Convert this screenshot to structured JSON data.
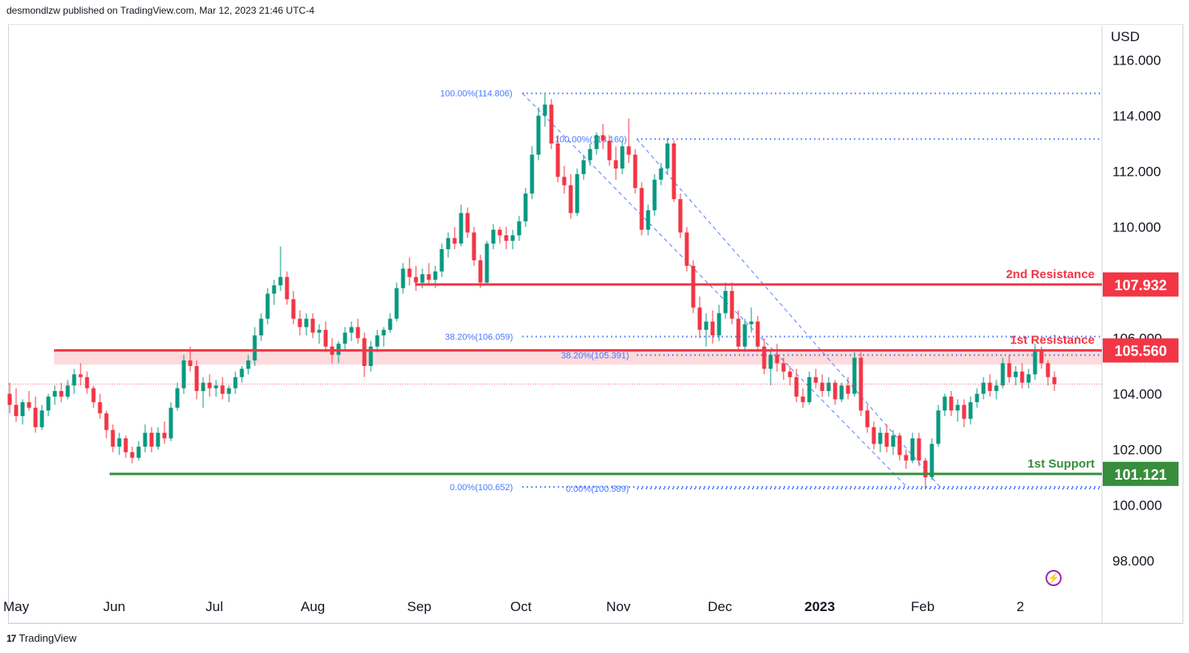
{
  "header": {
    "publisher": "desmondlzw published on TradingView.com, Mar 12, 2023 21:46 UTC-4"
  },
  "footer": {
    "brand": "TradingView",
    "logo_icon": "tradingview-logo-icon"
  },
  "currency": "USD",
  "chart_data": {
    "type": "candlestick",
    "instrument_currency": "USD",
    "ylim": [
      97.0,
      117.0
    ],
    "y_ticks": [
      "116.000",
      "114.000",
      "112.000",
      "110.000",
      "106.000",
      "104.000",
      "102.000",
      "100.000",
      "98.000"
    ],
    "x_ticks": [
      "May",
      "Jun",
      "Jul",
      "Aug",
      "Sep",
      "Oct",
      "Nov",
      "Dec",
      "2023",
      "Feb",
      "2"
    ],
    "horizontal_levels": [
      {
        "label": "2nd Resistance",
        "value": "107.932",
        "color": "#f23645"
      },
      {
        "label": "1st Resistance",
        "value": "105.560",
        "color": "#f23645"
      },
      {
        "label": "1st Support",
        "value": "101.121",
        "color": "#388e3c"
      }
    ],
    "fibonacci_labels": [
      {
        "text": "100.00%(114.806)",
        "value": 114.806
      },
      {
        "text": "100.00%(113.160)",
        "value": 113.16
      },
      {
        "text": "38.20%(106.059)",
        "value": 106.059
      },
      {
        "text": "38.20%(105.391)",
        "value": 105.391
      },
      {
        "text": "0.00%(100.652)",
        "value": 100.652
      },
      {
        "text": "0.00%(100.589)",
        "value": 100.589
      }
    ],
    "last_price": 104.35,
    "candles": [
      [
        104.0,
        104.4,
        103.3,
        103.6
      ],
      [
        103.6,
        104.2,
        103.0,
        103.2
      ],
      [
        103.2,
        103.8,
        102.9,
        103.7
      ],
      [
        103.7,
        104.1,
        103.4,
        103.5
      ],
      [
        103.5,
        103.9,
        102.6,
        102.8
      ],
      [
        102.8,
        103.6,
        102.7,
        103.4
      ],
      [
        103.4,
        104.0,
        103.2,
        103.9
      ],
      [
        103.9,
        104.3,
        103.6,
        104.1
      ],
      [
        104.1,
        104.4,
        103.7,
        103.9
      ],
      [
        103.9,
        104.5,
        103.8,
        104.3
      ],
      [
        104.3,
        104.9,
        104.0,
        104.7
      ],
      [
        104.7,
        105.1,
        104.3,
        104.6
      ],
      [
        104.6,
        104.8,
        104.0,
        104.2
      ],
      [
        104.2,
        104.3,
        103.5,
        103.7
      ],
      [
        103.7,
        104.0,
        103.1,
        103.3
      ],
      [
        103.3,
        103.4,
        102.4,
        102.7
      ],
      [
        102.7,
        102.9,
        101.9,
        102.1
      ],
      [
        102.1,
        102.6,
        101.8,
        102.4
      ],
      [
        102.4,
        102.5,
        101.7,
        101.9
      ],
      [
        101.9,
        102.1,
        101.5,
        101.7
      ],
      [
        101.7,
        102.3,
        101.6,
        102.1
      ],
      [
        102.1,
        102.9,
        101.9,
        102.6
      ],
      [
        102.6,
        102.8,
        101.9,
        102.1
      ],
      [
        102.1,
        102.8,
        102.0,
        102.6
      ],
      [
        102.6,
        103.0,
        102.2,
        102.4
      ],
      [
        102.4,
        103.7,
        102.3,
        103.5
      ],
      [
        103.5,
        104.4,
        103.4,
        104.2
      ],
      [
        104.2,
        105.4,
        104.0,
        105.2
      ],
      [
        105.2,
        105.7,
        104.8,
        105.0
      ],
      [
        105.0,
        105.2,
        103.8,
        104.1
      ],
      [
        104.1,
        104.6,
        103.5,
        104.4
      ],
      [
        104.4,
        104.7,
        103.9,
        104.2
      ],
      [
        104.2,
        104.5,
        103.9,
        104.3
      ],
      [
        104.3,
        104.6,
        103.8,
        104.0
      ],
      [
        104.0,
        104.3,
        103.7,
        104.2
      ],
      [
        104.2,
        104.8,
        104.0,
        104.6
      ],
      [
        104.6,
        105.0,
        104.4,
        104.9
      ],
      [
        104.9,
        105.4,
        104.7,
        105.2
      ],
      [
        105.2,
        106.4,
        105.0,
        106.1
      ],
      [
        106.1,
        106.9,
        105.9,
        106.7
      ],
      [
        106.7,
        107.8,
        106.5,
        107.6
      ],
      [
        107.6,
        108.1,
        107.2,
        107.9
      ],
      [
        107.9,
        109.3,
        107.7,
        108.2
      ],
      [
        108.2,
        108.4,
        107.2,
        107.4
      ],
      [
        107.4,
        107.7,
        106.5,
        106.7
      ],
      [
        106.7,
        107.0,
        106.1,
        106.4
      ],
      [
        106.4,
        106.9,
        106.1,
        106.7
      ],
      [
        106.7,
        106.9,
        106.0,
        106.2
      ],
      [
        106.2,
        106.5,
        105.8,
        106.3
      ],
      [
        106.3,
        106.6,
        105.5,
        105.7
      ],
      [
        105.7,
        106.0,
        105.1,
        105.4
      ],
      [
        105.4,
        105.9,
        105.1,
        105.8
      ],
      [
        105.8,
        106.4,
        105.6,
        106.2
      ],
      [
        106.2,
        106.6,
        105.9,
        106.4
      ],
      [
        106.4,
        106.7,
        105.8,
        106.0
      ],
      [
        106.0,
        106.2,
        104.6,
        105.0
      ],
      [
        105.0,
        105.9,
        104.8,
        105.7
      ],
      [
        105.7,
        106.3,
        105.5,
        106.1
      ],
      [
        106.1,
        106.4,
        105.7,
        106.3
      ],
      [
        106.3,
        106.9,
        106.2,
        106.7
      ],
      [
        106.7,
        108.0,
        106.6,
        107.8
      ],
      [
        107.8,
        108.7,
        107.6,
        108.5
      ],
      [
        108.5,
        108.9,
        107.9,
        108.2
      ],
      [
        108.2,
        108.6,
        107.7,
        108.0
      ],
      [
        108.0,
        108.5,
        107.8,
        108.3
      ],
      [
        108.3,
        108.7,
        107.9,
        108.1
      ],
      [
        108.1,
        108.6,
        107.8,
        108.4
      ],
      [
        108.4,
        109.4,
        108.2,
        109.2
      ],
      [
        109.2,
        109.8,
        108.9,
        109.6
      ],
      [
        109.6,
        110.0,
        109.2,
        109.4
      ],
      [
        109.4,
        110.8,
        109.3,
        110.5
      ],
      [
        110.5,
        110.7,
        109.6,
        109.8
      ],
      [
        109.8,
        110.0,
        108.6,
        108.8
      ],
      [
        108.8,
        109.0,
        107.8,
        108.0
      ],
      [
        108.0,
        109.5,
        107.9,
        109.4
      ],
      [
        109.4,
        110.1,
        109.2,
        109.9
      ],
      [
        109.9,
        110.0,
        109.4,
        109.7
      ],
      [
        109.7,
        110.0,
        109.2,
        109.5
      ],
      [
        109.5,
        109.9,
        109.2,
        109.7
      ],
      [
        109.7,
        110.4,
        109.5,
        110.2
      ],
      [
        110.2,
        111.4,
        110.0,
        111.2
      ],
      [
        111.2,
        112.9,
        111.0,
        112.6
      ],
      [
        112.6,
        114.3,
        112.4,
        114.0
      ],
      [
        114.0,
        114.8,
        113.6,
        114.4
      ],
      [
        114.4,
        114.6,
        112.8,
        113.0
      ],
      [
        113.0,
        113.3,
        111.6,
        111.8
      ],
      [
        111.8,
        112.2,
        111.2,
        111.5
      ],
      [
        111.5,
        111.9,
        110.3,
        110.5
      ],
      [
        110.5,
        112.1,
        110.4,
        111.9
      ],
      [
        111.9,
        112.6,
        111.7,
        112.4
      ],
      [
        112.4,
        113.0,
        112.2,
        112.8
      ],
      [
        112.8,
        113.4,
        112.6,
        113.3
      ],
      [
        113.3,
        113.7,
        112.8,
        113.1
      ],
      [
        113.1,
        113.3,
        112.2,
        112.4
      ],
      [
        112.4,
        112.9,
        111.7,
        112.1
      ],
      [
        112.1,
        113.1,
        111.9,
        112.9
      ],
      [
        112.9,
        113.9,
        112.3,
        112.6
      ],
      [
        112.6,
        112.8,
        111.2,
        111.4
      ],
      [
        111.4,
        111.6,
        109.7,
        109.9
      ],
      [
        109.9,
        110.8,
        109.7,
        110.6
      ],
      [
        110.6,
        111.9,
        110.4,
        111.7
      ],
      [
        111.7,
        112.3,
        111.5,
        112.1
      ],
      [
        112.1,
        113.2,
        111.9,
        113.0
      ],
      [
        113.0,
        113.1,
        110.9,
        111.0
      ],
      [
        111.0,
        111.2,
        109.6,
        109.8
      ],
      [
        109.8,
        110.0,
        108.4,
        108.6
      ],
      [
        108.6,
        108.8,
        106.9,
        107.1
      ],
      [
        107.1,
        107.5,
        106.0,
        106.3
      ],
      [
        106.3,
        106.9,
        105.7,
        106.6
      ],
      [
        106.6,
        107.0,
        105.8,
        106.1
      ],
      [
        106.1,
        107.2,
        105.9,
        106.9
      ],
      [
        106.9,
        108.0,
        106.7,
        107.7
      ],
      [
        107.7,
        108.0,
        106.5,
        106.7
      ],
      [
        106.7,
        107.0,
        105.5,
        105.7
      ],
      [
        105.7,
        106.7,
        105.5,
        106.5
      ],
      [
        106.5,
        107.1,
        106.2,
        106.6
      ],
      [
        106.6,
        106.8,
        105.5,
        105.7
      ],
      [
        105.7,
        106.0,
        104.7,
        104.9
      ],
      [
        104.9,
        105.6,
        104.3,
        105.4
      ],
      [
        105.4,
        105.8,
        104.8,
        105.1
      ],
      [
        105.1,
        105.3,
        104.5,
        104.8
      ],
      [
        104.8,
        105.0,
        104.3,
        104.6
      ],
      [
        104.6,
        104.9,
        103.7,
        103.9
      ],
      [
        103.9,
        104.2,
        103.5,
        103.7
      ],
      [
        103.7,
        104.8,
        103.6,
        104.6
      ],
      [
        104.6,
        104.9,
        104.2,
        104.4
      ],
      [
        104.4,
        104.7,
        103.9,
        104.1
      ],
      [
        104.1,
        104.6,
        103.9,
        104.4
      ],
      [
        104.4,
        104.5,
        103.6,
        103.8
      ],
      [
        103.8,
        104.4,
        103.7,
        104.3
      ],
      [
        104.3,
        104.6,
        103.8,
        104.0
      ],
      [
        104.0,
        105.5,
        103.9,
        105.3
      ],
      [
        105.3,
        105.5,
        103.2,
        103.4
      ],
      [
        103.4,
        103.6,
        102.6,
        102.8
      ],
      [
        102.8,
        103.0,
        102.0,
        102.2
      ],
      [
        102.2,
        102.8,
        101.9,
        102.6
      ],
      [
        102.6,
        102.9,
        101.9,
        102.1
      ],
      [
        102.1,
        102.7,
        101.8,
        102.5
      ],
      [
        102.5,
        102.6,
        101.6,
        101.8
      ],
      [
        101.8,
        102.0,
        101.3,
        101.6
      ],
      [
        101.6,
        102.6,
        101.5,
        102.4
      ],
      [
        102.4,
        102.6,
        101.4,
        101.6
      ],
      [
        101.6,
        101.7,
        100.6,
        101.0
      ],
      [
        101.0,
        102.4,
        100.9,
        102.2
      ],
      [
        102.2,
        103.6,
        102.1,
        103.4
      ],
      [
        103.4,
        104.0,
        103.2,
        103.9
      ],
      [
        103.9,
        104.1,
        103.2,
        103.4
      ],
      [
        103.4,
        103.8,
        103.0,
        103.6
      ],
      [
        103.6,
        103.8,
        102.8,
        103.1
      ],
      [
        103.1,
        103.9,
        102.9,
        103.7
      ],
      [
        103.7,
        104.2,
        103.5,
        104.0
      ],
      [
        104.0,
        104.6,
        103.8,
        104.4
      ],
      [
        104.4,
        104.7,
        103.9,
        104.1
      ],
      [
        104.1,
        104.5,
        103.8,
        104.3
      ],
      [
        104.3,
        105.3,
        104.2,
        105.1
      ],
      [
        105.1,
        105.4,
        104.4,
        104.6
      ],
      [
        104.6,
        105.0,
        104.3,
        104.8
      ],
      [
        104.8,
        105.1,
        104.2,
        104.4
      ],
      [
        104.4,
        104.9,
        104.2,
        104.7
      ],
      [
        104.7,
        105.8,
        104.5,
        105.6
      ],
      [
        105.6,
        105.7,
        104.9,
        105.1
      ],
      [
        105.1,
        105.2,
        104.3,
        104.6
      ],
      [
        104.6,
        104.8,
        104.1,
        104.35
      ]
    ]
  }
}
